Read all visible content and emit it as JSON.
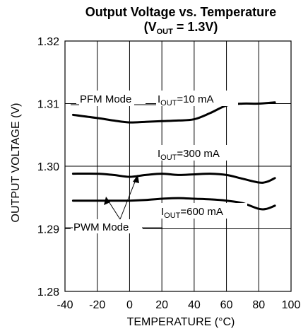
{
  "chart_data": {
    "type": "line",
    "title": "Output Voltage vs. Temperature",
    "subtitle": {
      "prefix": "(V",
      "sub": "OUT",
      "suffix": " = 1.3V)"
    },
    "xlabel": "TEMPERATURE (°C)",
    "ylabel": "OUTPUT VOLTAGE (V)",
    "xlim": [
      -40,
      100
    ],
    "ylim": [
      1.28,
      1.32
    ],
    "x_ticks": [
      -40,
      -20,
      0,
      20,
      40,
      60,
      80,
      100
    ],
    "y_ticks": [
      1.28,
      1.29,
      1.3,
      1.31,
      1.32
    ],
    "x_tick_labels": [
      "-40",
      "-20",
      "0",
      "20",
      "40",
      "60",
      "80",
      "100"
    ],
    "y_tick_labels": [
      "1.28",
      "1.29",
      "1.30",
      "1.31",
      "1.32"
    ],
    "grid": true,
    "series": [
      {
        "x": [
          -35,
          -20,
          -10,
          0,
          10,
          20,
          30,
          40,
          50,
          60,
          70,
          80,
          90
        ],
        "y": [
          1.3082,
          1.3077,
          1.3073,
          1.307,
          1.3071,
          1.3072,
          1.3073,
          1.3075,
          1.3085,
          1.3097,
          1.31,
          1.31,
          1.3102
        ]
      },
      {
        "x": [
          -35,
          -20,
          -10,
          0,
          10,
          20,
          30,
          40,
          50,
          60,
          70,
          80,
          85,
          90
        ],
        "y": [
          1.2988,
          1.2988,
          1.2986,
          1.2983,
          1.2986,
          1.2988,
          1.2986,
          1.2987,
          1.2988,
          1.2986,
          1.298,
          1.2974,
          1.2975,
          1.2981
        ]
      },
      {
        "x": [
          -35,
          -20,
          -10,
          0,
          10,
          20,
          30,
          40,
          50,
          60,
          70,
          80,
          85,
          90
        ],
        "y": [
          1.2945,
          1.2945,
          1.2945,
          1.2945,
          1.2946,
          1.2948,
          1.2949,
          1.2948,
          1.2947,
          1.2945,
          1.2941,
          1.2932,
          1.2932,
          1.2937
        ]
      }
    ],
    "annotations": {
      "pfm_mode": "PFM Mode",
      "iout_10": {
        "prefix": "I",
        "sub": "OUT",
        "suffix": "=10 mA"
      },
      "iout_300": {
        "prefix": "I",
        "sub": "OUT",
        "suffix": "=300 mA"
      },
      "iout_600": {
        "prefix": "I",
        "sub": "OUT",
        "suffix": "=600 mA"
      },
      "pwm_mode": "PWM Mode"
    }
  }
}
